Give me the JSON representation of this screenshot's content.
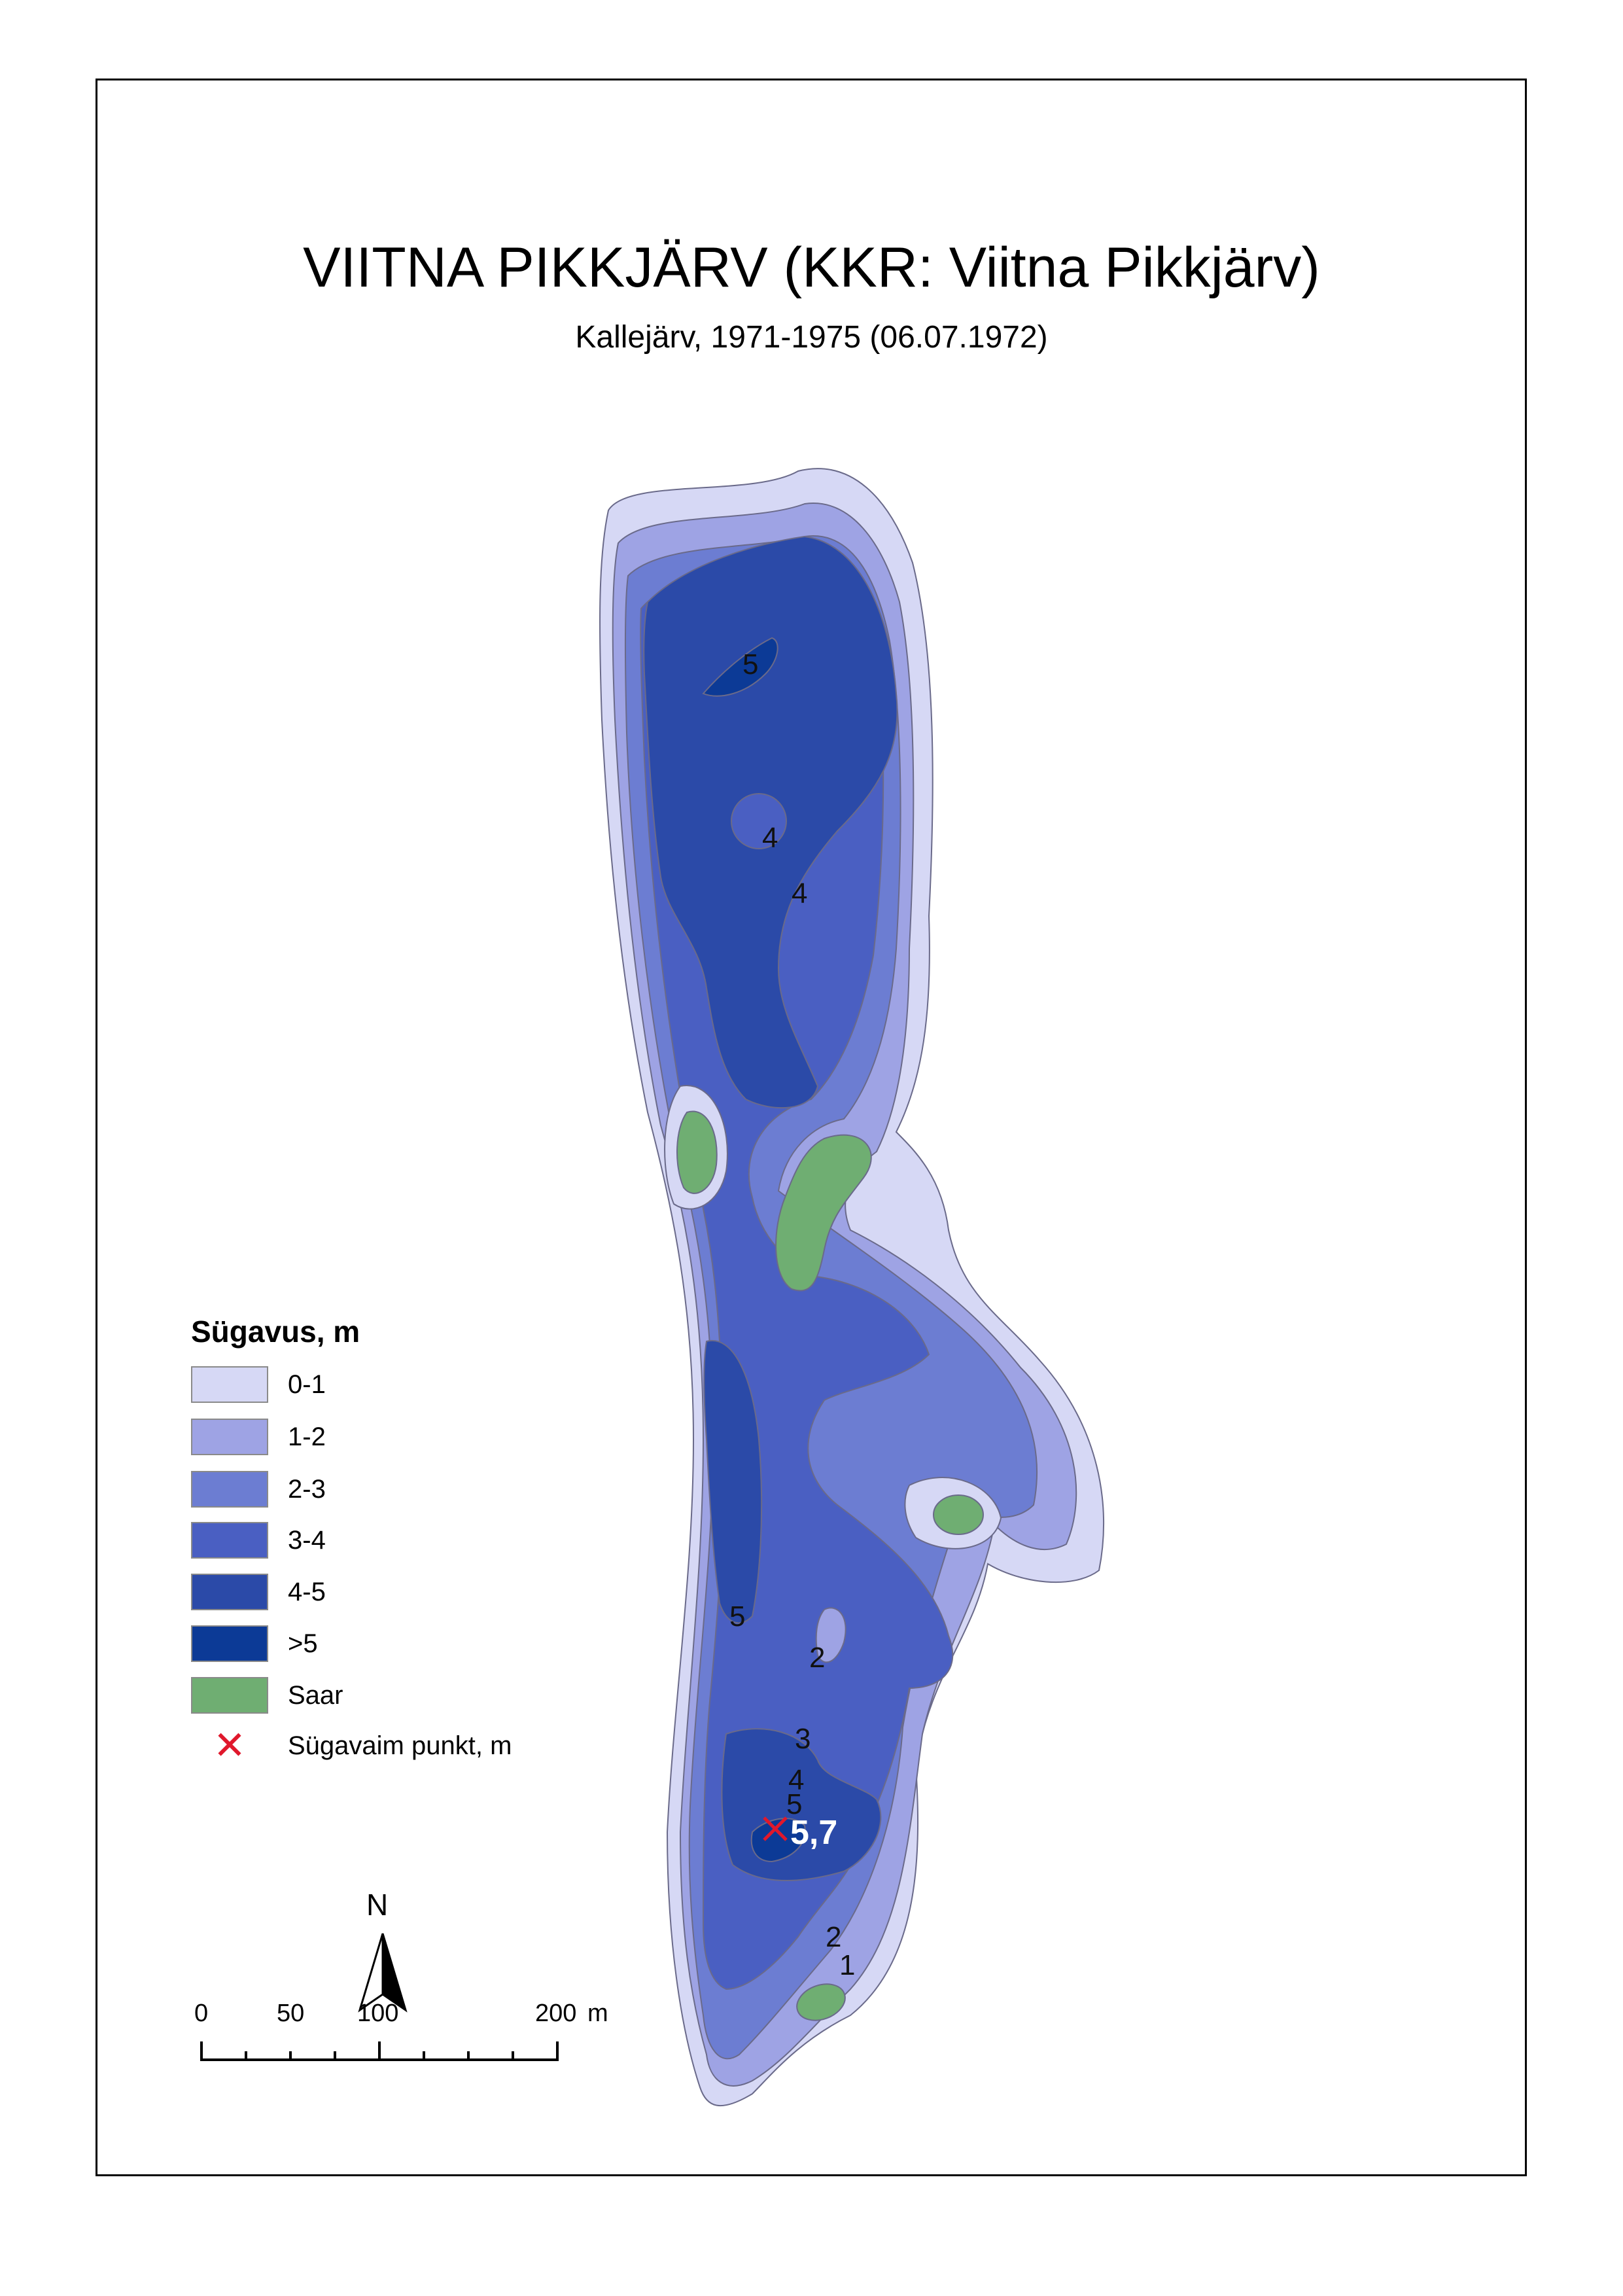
{
  "title": "VIITNA PIKKJÄRV (KKR: Viitna Pikkjärv)",
  "subtitle": "Kallejärv, 1971-1975 (06.07.1972)",
  "legend": {
    "title": "Sügavus, m",
    "items": [
      {
        "label": "0-1",
        "color": "#d6d8f5"
      },
      {
        "label": "1-2",
        "color": "#9ea3e4"
      },
      {
        "label": "2-3",
        "color": "#6c7dd2"
      },
      {
        "label": "3-4",
        "color": "#4a5fc2"
      },
      {
        "label": "4-5",
        "color": "#2b4aa8"
      },
      {
        "label": ">5",
        "color": "#0c3a96"
      },
      {
        "label": "Saar",
        "color": "#6fae72"
      }
    ],
    "deepest_point_label": "Sügavaim punkt, m"
  },
  "contour_labels": [
    "5",
    "4",
    "4",
    "5",
    "2",
    "3",
    "4",
    "5",
    "2",
    "1"
  ],
  "deepest_value": "5,7",
  "north_label": "N",
  "scale": {
    "ticks": [
      "0",
      "50",
      "100",
      "200"
    ],
    "unit": "m"
  }
}
